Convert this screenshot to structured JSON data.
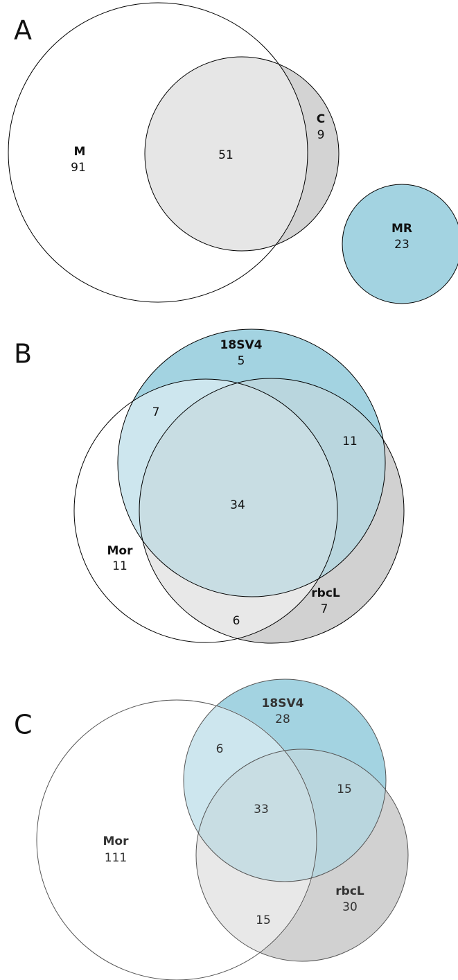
{
  "panels": [
    {
      "letter": "A",
      "sets": [
        {
          "name": "M",
          "count": 91
        },
        {
          "name": "C",
          "count": 9
        },
        {
          "name": "MR",
          "count": 23
        }
      ],
      "overlaps": [
        51
      ]
    },
    {
      "letter": "B",
      "sets": [
        {
          "name": "18SV4",
          "count": 5
        },
        {
          "name": "Mor",
          "count": 11
        },
        {
          "name": "rbcL",
          "count": 7
        }
      ],
      "overlaps": [
        7,
        11,
        34,
        6
      ]
    },
    {
      "letter": "C",
      "sets": [
        {
          "name": "18SV4",
          "count": 28
        },
        {
          "name": "Mor",
          "count": 111
        },
        {
          "name": "rbcL",
          "count": 30
        }
      ],
      "overlaps": [
        6,
        15,
        33,
        15
      ]
    }
  ]
}
